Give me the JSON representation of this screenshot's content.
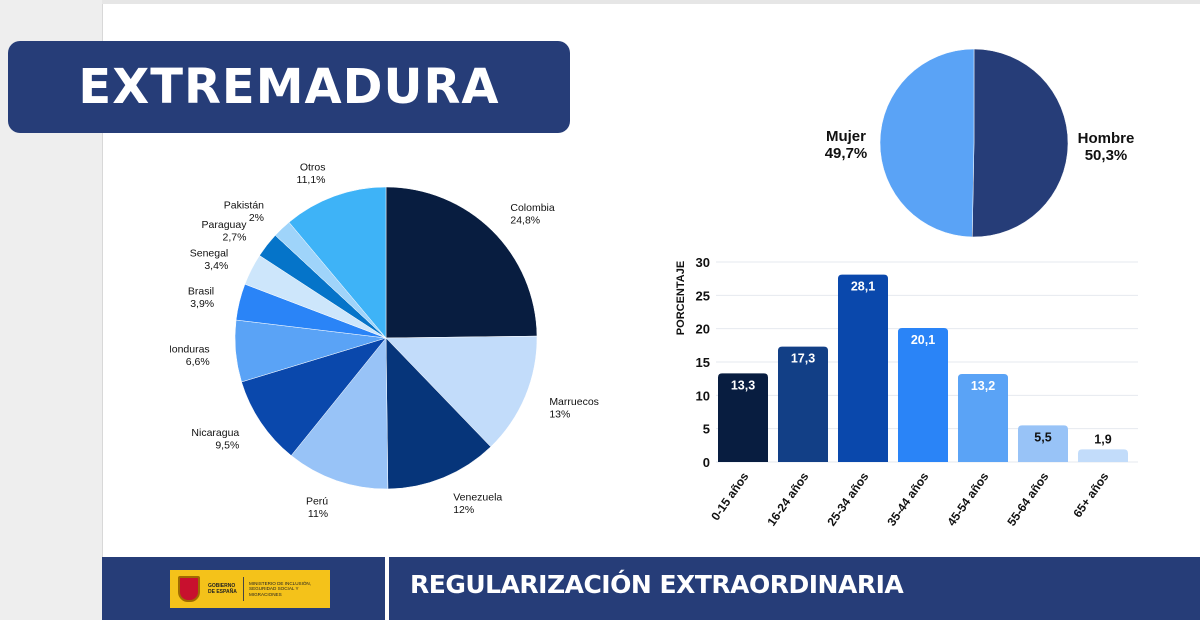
{
  "title": "EXTREMADURA",
  "footer": {
    "text": "REGULARIZACIÓN EXTRAORDINARIA",
    "logo_gov": "GOBIERNO DE ESPAÑA",
    "logo_ministry": "MINISTERIO DE INCLUSIÓN, SEGURIDAD SOCIAL Y MIGRACIONES"
  },
  "colors": {
    "banner": "#263d78",
    "logo": "#f4c21a"
  },
  "chart_data": [
    {
      "type": "pie",
      "title": "",
      "slices": [
        {
          "label": "Colombia",
          "value_label": "24,8%",
          "value": 24.8,
          "color": "#081d40"
        },
        {
          "label": "Marruecos",
          "value_label": "13%",
          "value": 13,
          "color": "#c2dcfa"
        },
        {
          "label": "Venezuela",
          "value_label": "12%",
          "value": 12,
          "color": "#06357a"
        },
        {
          "label": "Perú",
          "value_label": "11%",
          "value": 11,
          "color": "#98c3f7"
        },
        {
          "label": "Nicaragua",
          "value_label": "9,5%",
          "value": 9.5,
          "color": "#0a48ac"
        },
        {
          "label": "Honduras",
          "value_label": "6,6%",
          "value": 6.6,
          "color": "#5aa3f6"
        },
        {
          "label": "Brasil",
          "value_label": "3,9%",
          "value": 3.9,
          "color": "#2a84f7"
        },
        {
          "label": "Senegal",
          "value_label": "3,4%",
          "value": 3.4,
          "color": "#cde6fb"
        },
        {
          "label": "Paraguay",
          "value_label": "2,7%",
          "value": 2.7,
          "color": "#0574c9"
        },
        {
          "label": "Pakistán",
          "value_label": "2%",
          "value": 2,
          "color": "#9fd4fa"
        },
        {
          "label": "Otros",
          "value_label": "11,1%",
          "value": 11.1,
          "color": "#3eb3f7"
        }
      ]
    },
    {
      "type": "pie",
      "title": "",
      "slices": [
        {
          "label": "Hombre",
          "value_label": "50,3%",
          "value": 50.3,
          "color": "#263d78"
        },
        {
          "label": "Mujer",
          "value_label": "49,7%",
          "value": 49.7,
          "color": "#5aa3f6"
        }
      ]
    },
    {
      "type": "bar",
      "ylabel": "PORCENTAJE",
      "xlabel": "",
      "ylim": [
        0,
        30
      ],
      "yticks": [
        "0",
        "5",
        "10",
        "15",
        "20",
        "25",
        "30"
      ],
      "categories": [
        "0-15 años",
        "16-24 años",
        "25-34 años",
        "35-44 años",
        "45-54 años",
        "55-64 años",
        "65+ años"
      ],
      "values": [
        13.3,
        17.3,
        28.1,
        20.1,
        13.2,
        5.5,
        1.9
      ],
      "value_labels": [
        "13,3",
        "17,3",
        "28,1",
        "20,1",
        "13,2",
        "5,5",
        "1,9"
      ],
      "colors": [
        "#081d40",
        "#123f86",
        "#0a48ac",
        "#2a84f7",
        "#5aa3f6",
        "#98c3f7",
        "#c2dcfa"
      ],
      "grid": true
    }
  ]
}
